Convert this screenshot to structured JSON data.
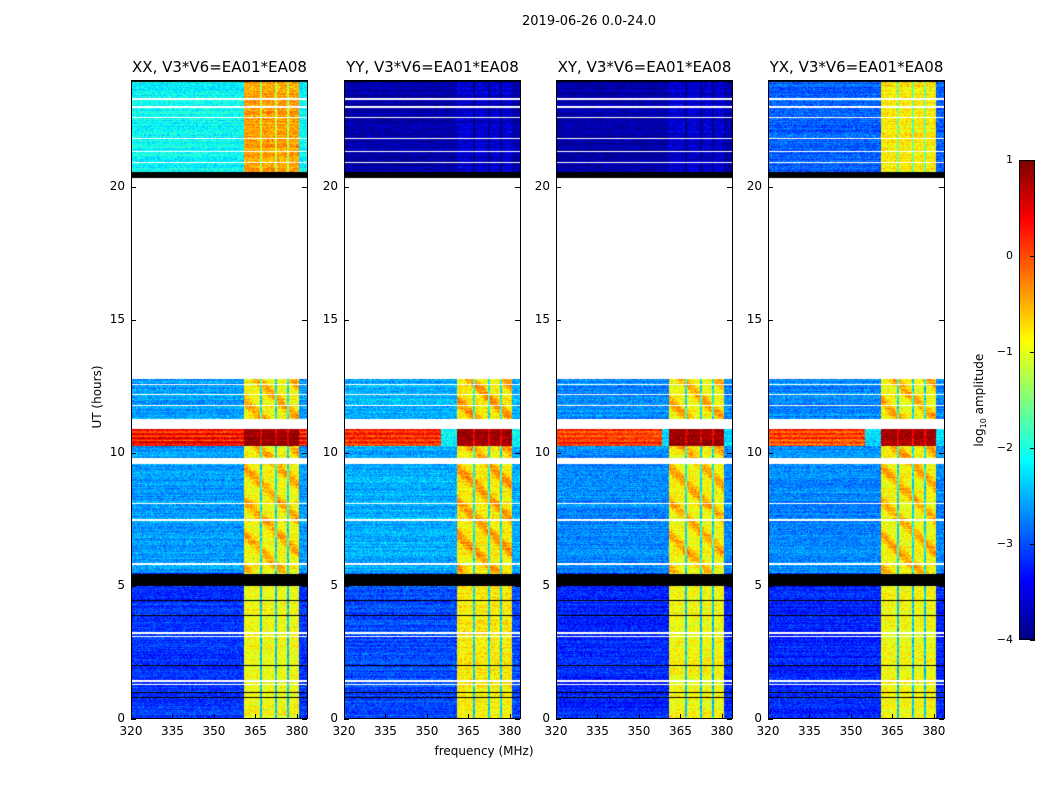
{
  "suptitle": "2019-06-26 0.0-24.0",
  "colorbar": {
    "label_main": "log",
    "label_sub": "10",
    "label_rest": " amplitude",
    "ticks": [
      "1",
      "0",
      "−1",
      "−2",
      "−3",
      "−4"
    ],
    "tick_values": [
      1,
      0,
      -1,
      -2,
      -3,
      -4
    ],
    "range": [
      -4,
      1
    ],
    "colormap": "jet"
  },
  "chart_data": {
    "type": "heatmap",
    "xlabel": "frequency (MHz)",
    "ylabel": "UT (hours)",
    "xlim": [
      320,
      384
    ],
    "ylim": [
      0,
      24
    ],
    "xticks": [
      "320",
      "335",
      "350",
      "365",
      "380"
    ],
    "xtick_values": [
      320,
      335,
      350,
      365,
      380
    ],
    "yticks": [
      "0",
      "5",
      "10",
      "15",
      "20"
    ],
    "ytick_values": [
      0,
      5,
      10,
      15,
      20
    ],
    "value_label": "log10 amplitude",
    "clim": [
      -4,
      1
    ],
    "bright_channel_band_mhz": [
      360.7,
      380.4
    ],
    "band_gap_channels_mhz": [
      366.8,
      372.2,
      376.5
    ],
    "flagged_hours": [
      [
        12.8,
        20.35
      ],
      [
        12.55,
        12.6
      ],
      [
        12.18,
        12.23
      ],
      [
        11.78,
        11.83
      ],
      [
        11.3,
        10.92
      ],
      [
        9.83,
        9.6
      ],
      [
        8.08,
        8.13
      ],
      [
        7.45,
        7.52
      ],
      [
        5.82,
        5.88
      ],
      [
        3.1,
        3.15
      ],
      [
        3.22,
        3.27
      ],
      [
        1.3,
        1.35
      ],
      [
        1.42,
        1.47
      ],
      [
        23.28,
        23.33
      ],
      [
        22.98,
        23.03
      ],
      [
        22.58,
        22.63
      ],
      [
        21.8,
        21.85
      ],
      [
        21.3,
        21.35
      ],
      [
        20.9,
        20.95
      ]
    ],
    "zero_hours": [
      [
        5.03,
        5.45
      ],
      [
        20.35,
        20.55
      ],
      [
        19.05,
        19.15
      ],
      [
        4.7,
        4.73
      ],
      [
        4.45,
        4.48
      ],
      [
        3.9,
        3.93
      ],
      [
        2.0,
        2.03
      ],
      [
        1.88,
        1.9
      ],
      [
        1.0,
        1.03
      ],
      [
        0.8,
        0.83
      ],
      [
        23.95,
        24.0
      ]
    ],
    "rfi_event_hours": [
      10.28,
      10.92
    ],
    "panels": [
      {
        "title": "XX, V3*V6=EA01*EA08",
        "background_level": -2.6,
        "band_level": -0.9,
        "early_level": -3.1,
        "late_level": -2.1,
        "late_band_level": -0.4,
        "rfi_level": 0.3,
        "rfi_band_level": 0.9,
        "rfi_extent_mhz": 384
      },
      {
        "title": "YY, V3*V6=EA01*EA08",
        "background_level": -2.5,
        "band_level": -0.8,
        "early_level": -3.0,
        "late_level": -3.8,
        "late_band_level": -3.6,
        "rfi_level": 0.2,
        "rfi_band_level": 0.9,
        "rfi_extent_mhz": 355
      },
      {
        "title": "XY, V3*V6=EA01*EA08",
        "background_level": -2.7,
        "band_level": -0.9,
        "early_level": -3.2,
        "late_level": -3.8,
        "late_band_level": -3.6,
        "rfi_level": 0.1,
        "rfi_band_level": 0.9,
        "rfi_extent_mhz": 358
      },
      {
        "title": "YX, V3*V6=EA01*EA08",
        "background_level": -2.7,
        "band_level": -0.9,
        "early_level": -3.2,
        "late_level": -2.9,
        "late_band_level": -0.8,
        "rfi_level": 0.0,
        "rfi_band_level": 0.8,
        "rfi_extent_mhz": 355
      }
    ]
  }
}
